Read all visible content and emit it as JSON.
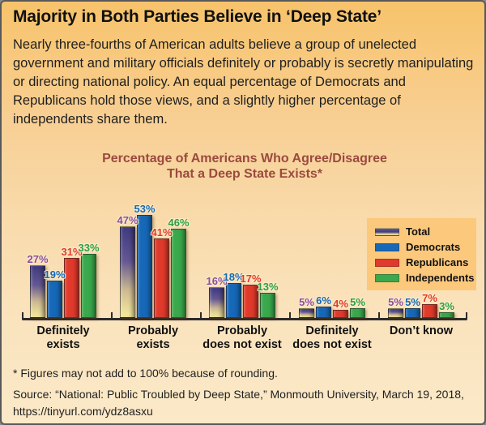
{
  "header": {
    "title": "Majority in Both Parties Believe in ‘Deep State’",
    "paragraph": "Nearly three-fourths of American adults believe a group of unelected government and military officials definitely or probably is secretly manipulating or directing national policy. An equal percentage of Democrats and Republicans hold those views, and a slightly higher percentage of independents share them."
  },
  "chart_data": {
    "type": "bar",
    "title": "Percentage of Americans Who Agree/Disagree That a Deep State Exists*",
    "title_lines": [
      "Percentage of Americans Who Agree/Disagree",
      "That a Deep State Exists*"
    ],
    "categories": [
      "Definitely exists",
      "Probably exists",
      "Probably does not exist",
      "Definitely does not exist",
      "Don’t know"
    ],
    "category_label_lines": [
      [
        "Definitely",
        "exists"
      ],
      [
        "Probably",
        "exists"
      ],
      [
        "Probably",
        "does not exist"
      ],
      [
        "Definitely",
        "does not exist"
      ],
      [
        "Don’t know",
        ""
      ]
    ],
    "series": [
      {
        "name": "Total",
        "values": [
          27,
          47,
          16,
          5,
          5
        ],
        "color": "gradient",
        "gradient": [
          "#3f3a80",
          "#655893",
          "#cdb992",
          "#f6ec9b"
        ],
        "label_color": "#8c4da0"
      },
      {
        "name": "Democrats",
        "values": [
          19,
          53,
          18,
          6,
          5
        ],
        "color": "#1668b8",
        "label_color": "#1668b8"
      },
      {
        "name": "Republicans",
        "values": [
          31,
          41,
          17,
          4,
          7
        ],
        "color": "#e13a2b",
        "label_color": "#e13a2b"
      },
      {
        "name": "Independents",
        "values": [
          33,
          46,
          13,
          5,
          3
        ],
        "color": "#3aa84c",
        "label_color": "#2d9e47"
      }
    ],
    "value_suffix": "%",
    "ylim": [
      0,
      60
    ],
    "grid": false,
    "legend_position": "right",
    "axis_color": "#2b2b2b"
  },
  "footer": {
    "footnote": "* Figures may not add to 100% because of rounding.",
    "source": "Source: “National: Public Troubled by Deep State,” Monmouth University, March 19, 2018, https://tinyurl.com/ydz8asxu"
  },
  "colors": {
    "background_top": "#f7c36b",
    "background_bottom": "#fbe9c8",
    "border": "#58595b",
    "chart_title": "#9b4a3f",
    "legend_background": "#fbc87c"
  }
}
